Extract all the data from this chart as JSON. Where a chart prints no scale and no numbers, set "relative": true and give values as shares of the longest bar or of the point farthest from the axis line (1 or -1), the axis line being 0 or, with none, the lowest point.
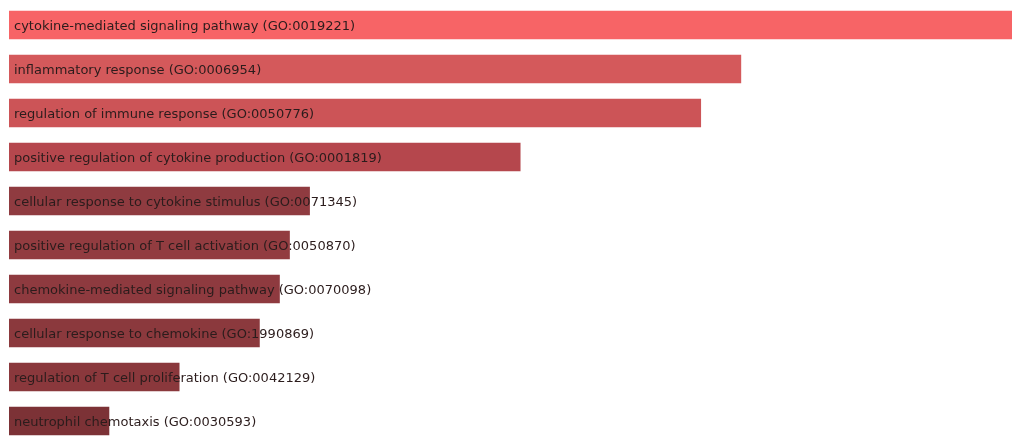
{
  "chart_data": {
    "type": "bar",
    "orientation": "horizontal",
    "relative": true,
    "categories": [
      "cytokine-mediated signaling pathway (GO:0019221)",
      "inflammatory response (GO:0006954)",
      "regulation of immune response (GO:0050776)",
      "positive regulation of cytokine production (GO:0001819)",
      "cellular response to cytokine stimulus (GO:0071345)",
      "positive regulation of T cell activation (GO:0050870)",
      "chemokine-mediated signaling pathway (GO:0070098)",
      "cellular response to chemokine (GO:1990869)",
      "regulation of T cell proliferation (GO:0042129)",
      "neutrophil chemotaxis (GO:0030593)"
    ],
    "values": [
      1,
      0.73,
      0.69,
      0.51,
      0.3,
      0.28,
      0.27,
      0.25,
      0.17,
      0.1
    ],
    "colors": [
      "#f76466",
      "#d4595b",
      "#cc5457",
      "#b5474d",
      "#8f3b40",
      "#923c40",
      "#8e3a3f",
      "#8b393d",
      "#8a383c",
      "#7c3236"
    ]
  }
}
